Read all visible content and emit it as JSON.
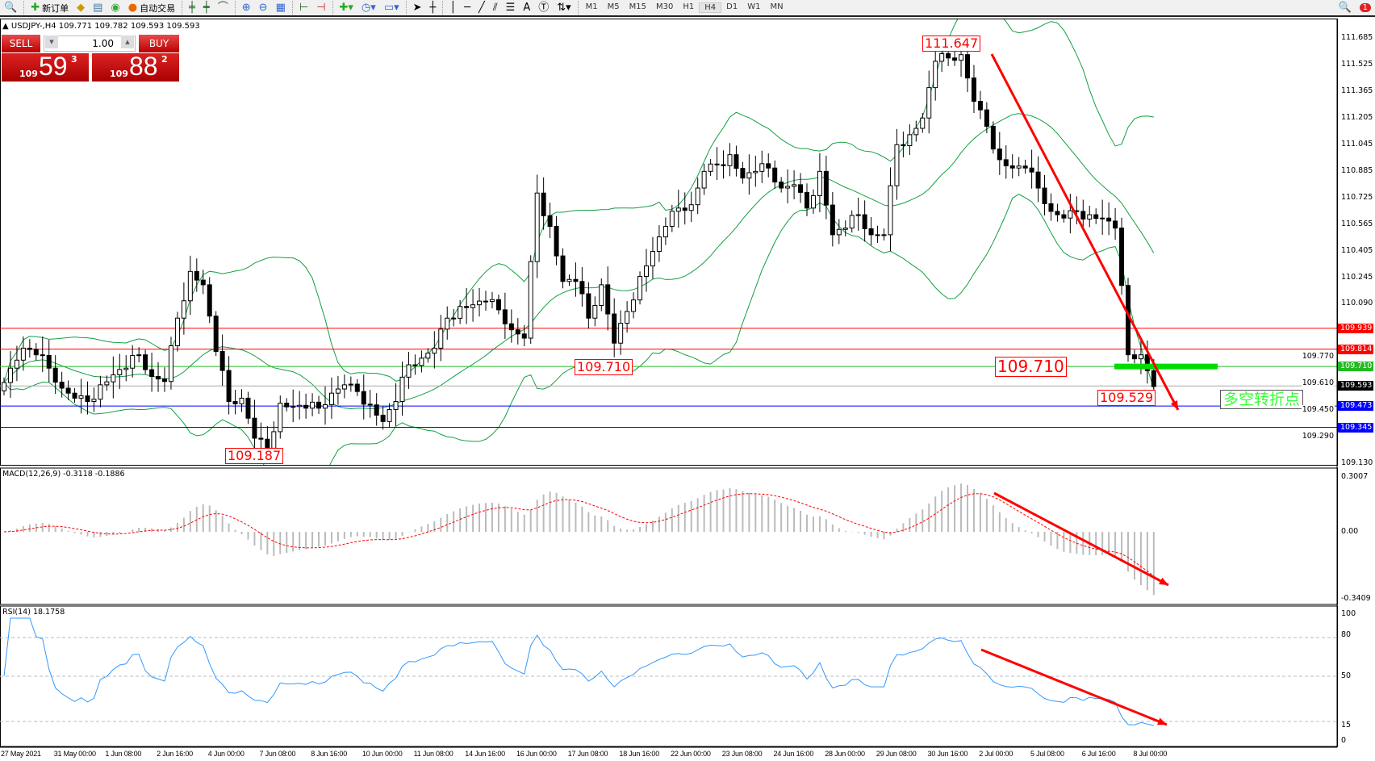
{
  "toolbar": {
    "new_order": "新订单",
    "auto_trading": "自动交易",
    "timeframes": [
      "M1",
      "M5",
      "M15",
      "M30",
      "H1",
      "H4",
      "D1",
      "W1",
      "MN"
    ],
    "active_timeframe": "H4",
    "notification_count": "1"
  },
  "chart": {
    "title": "USDJPY-,H4  109.771 109.782 109.593 109.593",
    "symbol": "USDJPY-",
    "timeframe": "H4"
  },
  "trade_panel": {
    "sell_label": "SELL",
    "buy_label": "BUY",
    "lot": "1.00",
    "sell_prefix": "109",
    "sell_big": "59",
    "sell_sup": "3",
    "buy_prefix": "109",
    "buy_big": "88",
    "buy_sup": "2"
  },
  "price_axis": [
    "111.685",
    "111.525",
    "111.365",
    "111.205",
    "111.045",
    "110.885",
    "110.725",
    "110.565",
    "110.405",
    "110.245",
    "110.090",
    "109.770",
    "109.610",
    "109.450",
    "109.290",
    "109.130"
  ],
  "price_lines": [
    {
      "price": 109.939,
      "label": "109.939",
      "color": "#ff0000"
    },
    {
      "price": 109.814,
      "label": "109.814",
      "color": "#ff0000"
    },
    {
      "price": 109.71,
      "label": "109.710",
      "color": "#22bb22"
    },
    {
      "price": 109.593,
      "label": "109.593",
      "color": "#000000"
    },
    {
      "price": 109.473,
      "label": "109.473",
      "color": "#0000ff"
    },
    {
      "price": 109.345,
      "label": "109.345",
      "color": "#0000ff"
    }
  ],
  "annotations": {
    "high": "111.647",
    "level1": "109.710",
    "low": "109.187",
    "level2": "109.710",
    "low2": "109.529",
    "turning_point": "多空转折点"
  },
  "close_path": [
    109.6,
    109.7,
    109.82,
    109.78,
    109.7,
    109.58,
    109.52,
    109.5,
    109.6,
    109.66,
    109.7,
    109.78,
    109.65,
    109.62,
    110.0,
    110.28,
    110.2,
    109.8,
    109.5,
    109.52,
    109.28,
    109.22,
    109.49,
    109.47,
    109.46,
    109.46,
    109.55,
    109.6,
    109.56,
    109.48,
    109.38,
    109.5,
    109.72,
    109.76,
    109.82,
    110.0,
    110.07,
    110.08,
    110.1,
    110.05,
    109.93,
    109.88,
    110.75,
    110.55,
    110.22,
    110.22,
    110.0,
    110.2,
    109.85,
    110.04,
    110.25,
    110.4,
    110.55,
    110.66,
    110.68,
    110.88,
    110.92,
    110.98,
    110.84,
    110.88,
    110.9,
    110.78,
    110.8,
    110.66,
    110.88,
    110.5,
    110.54,
    110.62,
    110.5,
    110.5,
    111.04,
    111.1,
    111.2,
    111.54,
    111.56,
    111.58,
    111.3,
    111.15,
    110.95,
    110.9,
    110.9,
    110.78,
    110.64,
    110.6,
    110.64,
    110.62,
    110.6,
    110.54,
    109.78,
    109.78,
    109.59
  ],
  "macd": {
    "label": "MACD(12,26,9) -0.3118 -0.1886",
    "axis": [
      "0.3007",
      "0.00",
      "-0.3409"
    ]
  },
  "rsi": {
    "label": "RSI(14) 18.1758",
    "axis": [
      "100",
      "80",
      "50",
      "15",
      "0"
    ]
  },
  "time_axis": [
    "27 May 2021",
    "31 May 00:00",
    "1 Jun 08:00",
    "2 Jun 16:00",
    "4 Jun 00:00",
    "7 Jun 08:00",
    "8 Jun 16:00",
    "10 Jun 00:00",
    "11 Jun 08:00",
    "14 Jun 16:00",
    "16 Jun 00:00",
    "17 Jun 08:00",
    "18 Jun 16:00",
    "22 Jun 00:00",
    "23 Jun 08:00",
    "24 Jun 16:00",
    "28 Jun 00:00",
    "29 Jun 08:00",
    "30 Jun 16:00",
    "2 Jul 00:00",
    "5 Jul 08:00",
    "6 Jul 16:00",
    "8 Jul 00:00"
  ],
  "colors": {
    "bands": "#11a040",
    "signal": "#ff0000",
    "rsi_line": "#3399ff",
    "arrow": "#ff0000"
  }
}
